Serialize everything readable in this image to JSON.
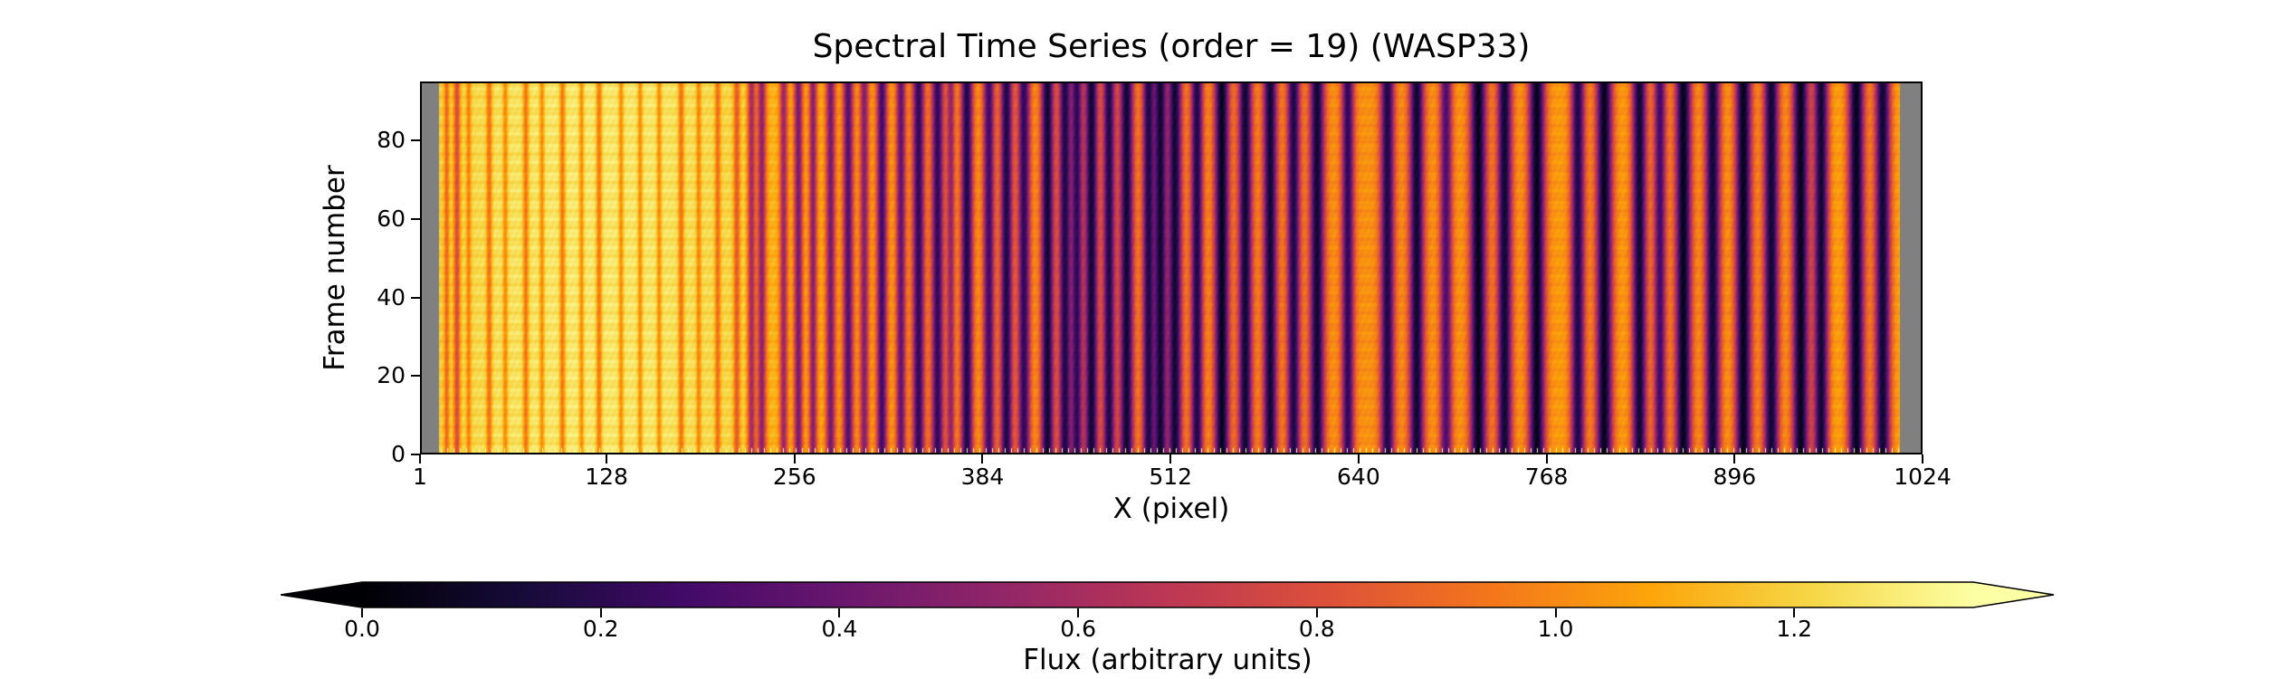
{
  "chart_data": {
    "type": "heatmap",
    "title": "Spectral Time Series (order = 19) (WASP33)",
    "xlabel": "X (pixel)",
    "ylabel": "Frame number",
    "xlim": [
      1,
      1024
    ],
    "ylim": [
      0,
      95
    ],
    "x_ticks": [
      "1",
      "128",
      "256",
      "384",
      "512",
      "640",
      "768",
      "896",
      "1024"
    ],
    "y_ticks": [
      "0",
      "20",
      "40",
      "60",
      "80"
    ],
    "masked_columns": [
      [
        1,
        13
      ],
      [
        1010,
        1024
      ]
    ],
    "colormap": "inferno",
    "colorbar": {
      "label": "Flux (arbitrary units)",
      "range": [
        0.0,
        1.35
      ],
      "extend": "both",
      "ticks": [
        "0.0",
        "0.2",
        "0.4",
        "0.6",
        "0.8",
        "1.0",
        "1.2"
      ]
    },
    "flux_profile": {
      "x": [
        13,
        50,
        100,
        160,
        220,
        240,
        300,
        400,
        500,
        640,
        700,
        800,
        900,
        1010
      ],
      "continuum": [
        1.18,
        1.24,
        1.27,
        1.26,
        1.2,
        1.12,
        1.08,
        1.05,
        1.04,
        1.02,
        1.03,
        1.05,
        1.06,
        1.07
      ]
    },
    "absorption_lines": {
      "x": [
        18,
        25,
        33,
        47,
        58,
        72,
        83,
        97,
        110,
        122,
        137,
        150,
        163,
        178,
        190,
        203,
        216,
        226,
        233,
        248,
        258,
        268,
        280,
        292,
        303,
        315,
        328,
        340,
        353,
        362,
        373,
        388,
        400,
        412,
        428,
        440,
        448,
        458,
        470,
        482,
        497,
        505,
        515,
        530,
        547,
        563,
        580,
        596,
        612,
        633,
        660,
        680,
        700,
        722,
        740,
        762,
        790,
        808,
        832,
        846,
        862,
        882,
        903,
        922,
        942,
        956,
        980,
        998
      ],
      "depth": [
        0.25,
        0.35,
        0.2,
        0.25,
        0.2,
        0.25,
        0.2,
        0.25,
        0.2,
        0.25,
        0.2,
        0.2,
        0.2,
        0.25,
        0.2,
        0.25,
        0.3,
        0.5,
        0.55,
        0.5,
        0.6,
        0.55,
        0.6,
        0.7,
        0.55,
        0.75,
        0.65,
        0.8,
        0.8,
        0.5,
        0.85,
        0.75,
        0.85,
        0.8,
        0.9,
        0.85,
        0.8,
        0.9,
        0.85,
        0.9,
        0.85,
        0.9,
        0.9,
        0.85,
        0.95,
        0.9,
        0.9,
        0.85,
        0.9,
        0.8,
        0.85,
        0.9,
        0.7,
        0.95,
        0.9,
        0.95,
        0.85,
        0.95,
        0.9,
        0.75,
        0.95,
        0.9,
        0.95,
        0.9,
        0.95,
        0.9,
        0.95,
        0.9
      ],
      "width": [
        1.2,
        1.6,
        1.2,
        1.4,
        1.2,
        1.4,
        1.2,
        1.4,
        1.2,
        1.4,
        1.2,
        1.2,
        1.2,
        1.4,
        1.2,
        1.4,
        1.6,
        2.0,
        2.2,
        2.0,
        2.2,
        2.0,
        2.4,
        2.6,
        2.2,
        2.6,
        2.4,
        3.0,
        3.0,
        2.0,
        3.0,
        2.8,
        3.0,
        3.0,
        3.2,
        3.0,
        2.8,
        3.2,
        3.0,
        3.4,
        3.0,
        3.2,
        3.4,
        3.0,
        3.6,
        3.4,
        3.4,
        3.2,
        3.6,
        3.0,
        3.4,
        3.6,
        3.0,
        4.0,
        3.6,
        4.0,
        3.4,
        4.0,
        3.6,
        3.0,
        4.0,
        3.8,
        4.0,
        3.8,
        4.0,
        3.6,
        4.0,
        3.8
      ]
    }
  }
}
